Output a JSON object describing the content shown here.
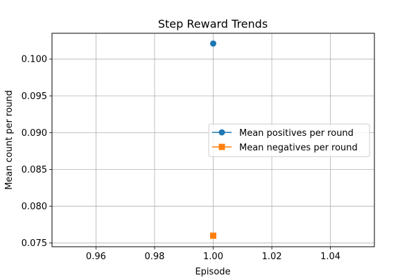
{
  "chart_data": {
    "type": "line",
    "title": "Step Reward Trends",
    "xlabel": "Episode",
    "ylabel": "Mean count per round",
    "xlim": [
      0.945,
      1.055
    ],
    "ylim": [
      0.0745,
      0.1035
    ],
    "xticks": [
      0.96,
      0.98,
      1.0,
      1.02,
      1.04
    ],
    "xtick_labels": [
      "0.96",
      "0.98",
      "1.00",
      "1.02",
      "1.04"
    ],
    "yticks": [
      0.075,
      0.08,
      0.085,
      0.09,
      0.095,
      0.1
    ],
    "ytick_labels": [
      "0.075",
      "0.080",
      "0.085",
      "0.090",
      "0.095",
      "0.100"
    ],
    "grid": true,
    "legend_position": "center-right",
    "series": [
      {
        "name": "Mean positives per round",
        "color": "#1f77b4",
        "marker": "circle",
        "x": [
          1.0
        ],
        "y": [
          0.1021
        ]
      },
      {
        "name": "Mean negatives per round",
        "color": "#ff7f0e",
        "marker": "square",
        "x": [
          1.0
        ],
        "y": [
          0.076
        ]
      }
    ]
  }
}
